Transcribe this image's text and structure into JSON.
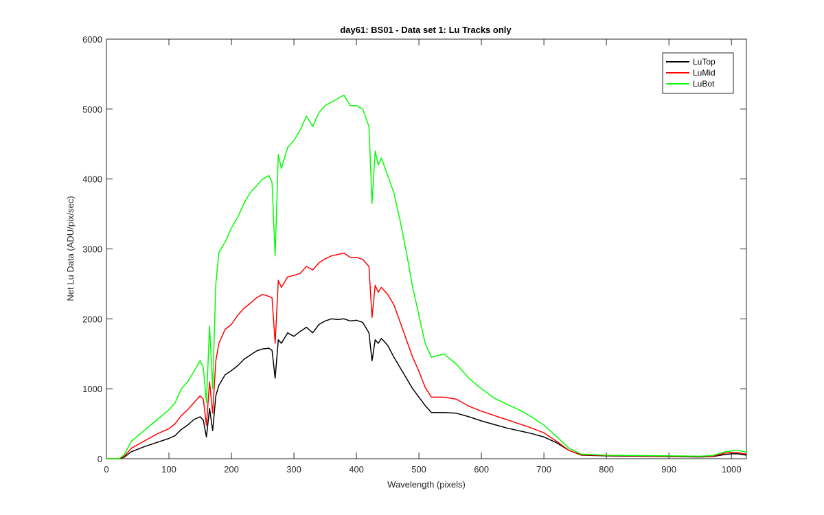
{
  "chart_data": {
    "type": "line",
    "title": "day61: BS01 - Data set 1: Lu Tracks only",
    "xlabel": "Wavelength (pixels)",
    "ylabel": "Net Lu Data (ADU/pix/sec)",
    "xlim": [
      0,
      1024
    ],
    "ylim": [
      0,
      6000
    ],
    "xticks": [
      0,
      100,
      200,
      300,
      400,
      500,
      600,
      700,
      800,
      900,
      1000
    ],
    "yticks": [
      0,
      1000,
      2000,
      3000,
      4000,
      5000,
      6000
    ],
    "grid": false,
    "legend_position": "top-right",
    "x": [
      0,
      20,
      28,
      40,
      60,
      80,
      100,
      110,
      120,
      130,
      140,
      150,
      155,
      160,
      165,
      170,
      175,
      180,
      190,
      200,
      210,
      220,
      230,
      240,
      250,
      260,
      265,
      270,
      275,
      280,
      290,
      300,
      310,
      320,
      330,
      340,
      350,
      360,
      370,
      380,
      390,
      400,
      410,
      420,
      425,
      430,
      435,
      440,
      450,
      460,
      470,
      480,
      490,
      500,
      510,
      520,
      540,
      560,
      580,
      600,
      620,
      640,
      660,
      680,
      700,
      720,
      740,
      760,
      800,
      850,
      900,
      950,
      970,
      990,
      1000,
      1010,
      1024
    ],
    "series": [
      {
        "name": "LuTop",
        "color": "#000000",
        "values": [
          0,
          0,
          20,
          100,
          170,
          230,
          290,
          330,
          420,
          480,
          560,
          600,
          550,
          310,
          720,
          400,
          900,
          1050,
          1200,
          1260,
          1330,
          1420,
          1480,
          1540,
          1570,
          1580,
          1550,
          1150,
          1700,
          1650,
          1800,
          1750,
          1820,
          1880,
          1800,
          1920,
          1970,
          2000,
          1990,
          2000,
          1970,
          1980,
          1950,
          1800,
          1400,
          1700,
          1650,
          1720,
          1620,
          1450,
          1300,
          1150,
          1000,
          880,
          760,
          660,
          660,
          650,
          600,
          540,
          490,
          440,
          400,
          360,
          310,
          230,
          120,
          50,
          40,
          35,
          30,
          25,
          30,
          60,
          70,
          70,
          50
        ]
      },
      {
        "name": "LuMid",
        "color": "#ff0000",
        "values": [
          0,
          0,
          30,
          150,
          250,
          350,
          430,
          500,
          620,
          700,
          800,
          900,
          850,
          480,
          1100,
          650,
          1400,
          1650,
          1850,
          1920,
          2050,
          2150,
          2220,
          2300,
          2350,
          2320,
          2300,
          1650,
          2550,
          2450,
          2600,
          2620,
          2650,
          2750,
          2700,
          2800,
          2860,
          2900,
          2920,
          2940,
          2880,
          2880,
          2850,
          2750,
          2020,
          2480,
          2380,
          2450,
          2350,
          2200,
          1950,
          1700,
          1450,
          1250,
          1020,
          880,
          880,
          850,
          750,
          680,
          620,
          560,
          500,
          440,
          370,
          250,
          120,
          55,
          45,
          40,
          35,
          30,
          35,
          80,
          90,
          85,
          65
        ]
      },
      {
        "name": "LuBot",
        "color": "#00ff00",
        "values": [
          0,
          0,
          50,
          250,
          400,
          550,
          700,
          800,
          1000,
          1100,
          1250,
          1400,
          1300,
          800,
          1900,
          1000,
          2500,
          2950,
          3100,
          3300,
          3450,
          3650,
          3800,
          3900,
          4000,
          4050,
          3950,
          2900,
          4350,
          4150,
          4450,
          4550,
          4700,
          4900,
          4750,
          4950,
          5050,
          5100,
          5150,
          5200,
          5050,
          5050,
          5000,
          4750,
          3650,
          4400,
          4200,
          4300,
          4050,
          3800,
          3400,
          2950,
          2450,
          2050,
          1650,
          1450,
          1500,
          1350,
          1150,
          1000,
          870,
          780,
          700,
          600,
          480,
          320,
          150,
          65,
          50,
          45,
          40,
          35,
          45,
          100,
          110,
          120,
          95
        ]
      }
    ]
  }
}
